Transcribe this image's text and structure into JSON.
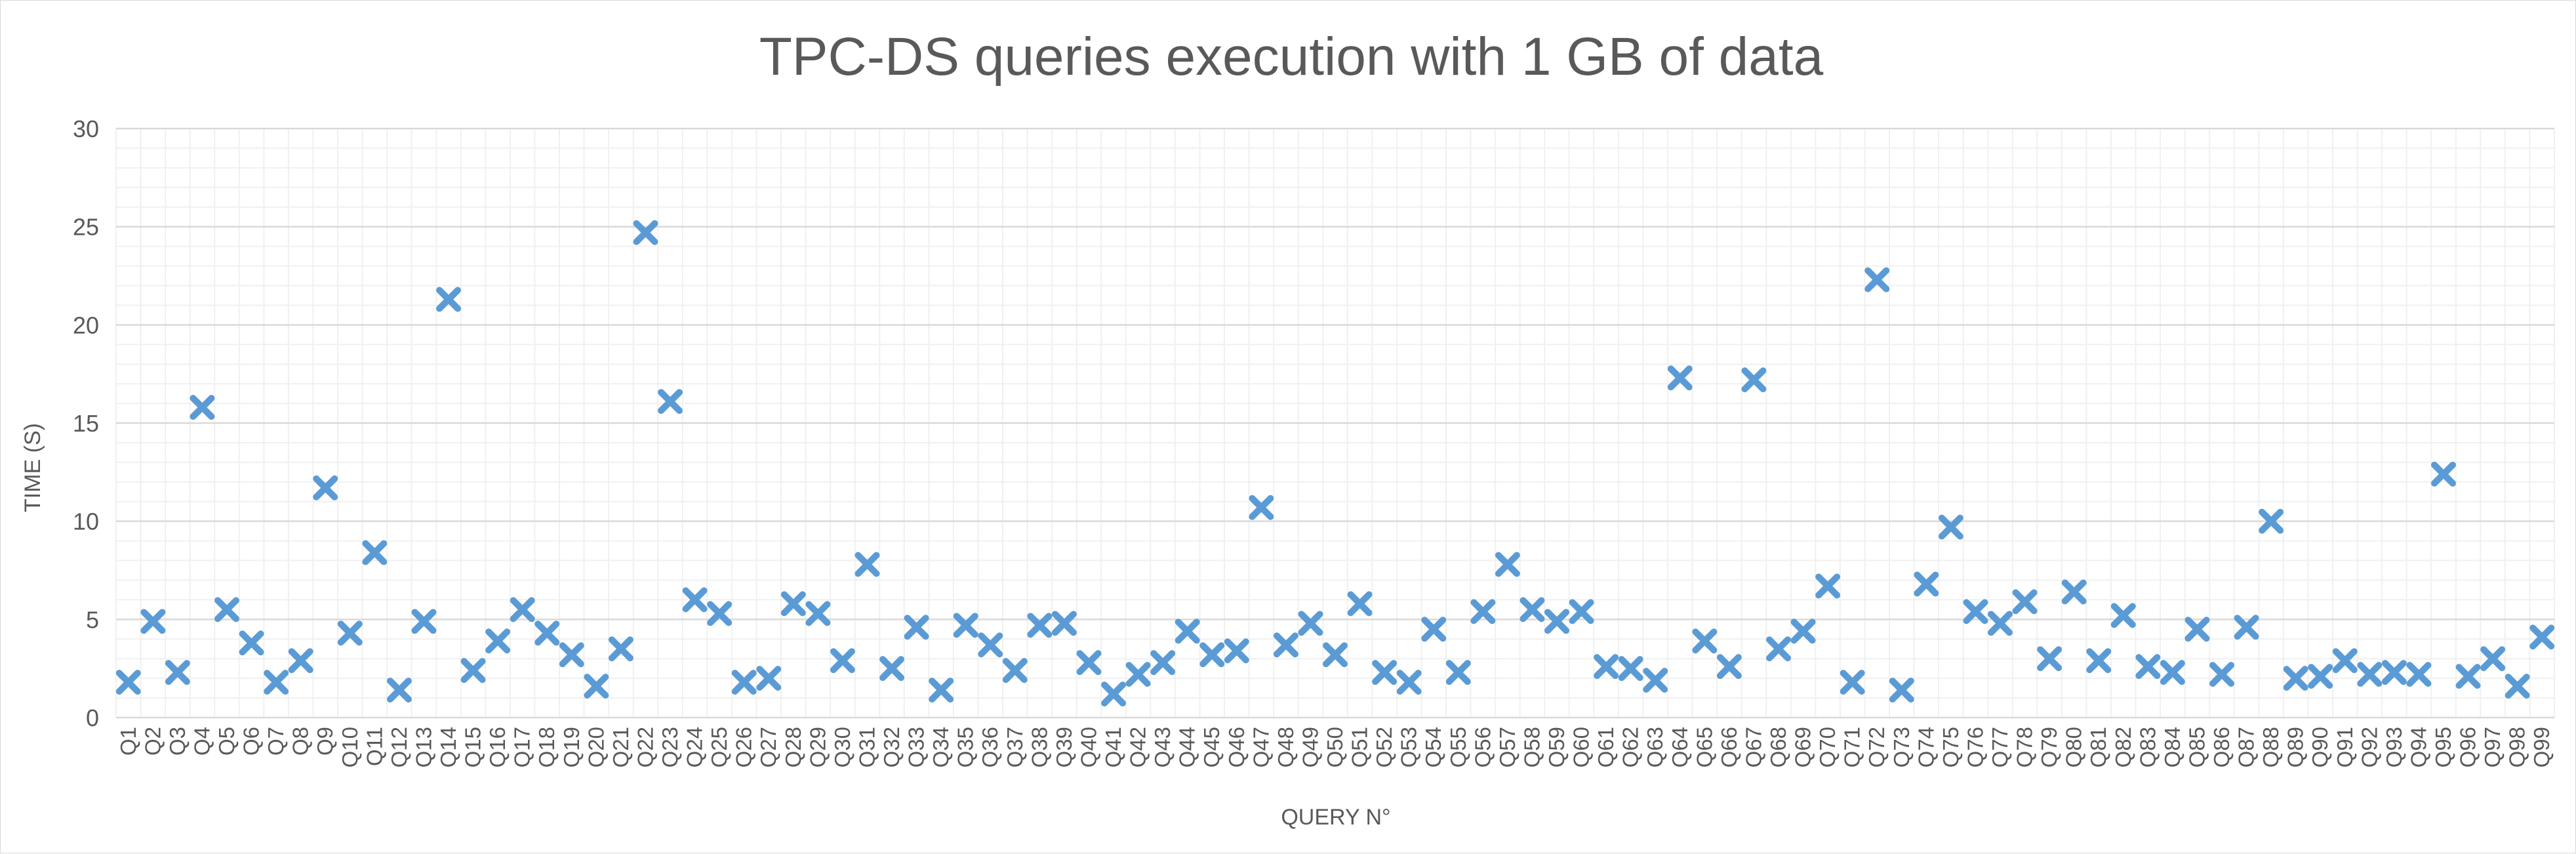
{
  "chart_data": {
    "type": "scatter",
    "title": "TPC-DS queries execution with 1 GB of data",
    "xlabel": "QUERY N°",
    "ylabel": "TIME (S)",
    "ylim": [
      0,
      30
    ],
    "y_ticks": [
      0,
      5,
      10,
      15,
      20,
      25,
      30
    ],
    "y_minor_step": 1,
    "grid": true,
    "marker": "x",
    "colors": {
      "marker": "#5b9bd5",
      "major_grid": "#d9d9d9",
      "minor_grid": "#f0f0f0",
      "text": "#595959"
    },
    "categories": [
      "Q1",
      "Q2",
      "Q3",
      "Q4",
      "Q5",
      "Q6",
      "Q7",
      "Q8",
      "Q9",
      "Q10",
      "Q11",
      "Q12",
      "Q13",
      "Q14",
      "Q15",
      "Q16",
      "Q17",
      "Q18",
      "Q19",
      "Q20",
      "Q21",
      "Q22",
      "Q23",
      "Q24",
      "Q25",
      "Q26",
      "Q27",
      "Q28",
      "Q29",
      "Q30",
      "Q31",
      "Q32",
      "Q33",
      "Q34",
      "Q35",
      "Q36",
      "Q37",
      "Q38",
      "Q39",
      "Q40",
      "Q41",
      "Q42",
      "Q43",
      "Q44",
      "Q45",
      "Q46",
      "Q47",
      "Q48",
      "Q49",
      "Q50",
      "Q51",
      "Q52",
      "Q53",
      "Q54",
      "Q55",
      "Q56",
      "Q57",
      "Q58",
      "Q59",
      "Q60",
      "Q61",
      "Q62",
      "Q63",
      "Q64",
      "Q65",
      "Q66",
      "Q67",
      "Q68",
      "Q69",
      "Q70",
      "Q71",
      "Q72",
      "Q73",
      "Q74",
      "Q75",
      "Q76",
      "Q77",
      "Q78",
      "Q79",
      "Q80",
      "Q81",
      "Q82",
      "Q83",
      "Q84",
      "Q85",
      "Q86",
      "Q87",
      "Q88",
      "Q89",
      "Q90",
      "Q91",
      "Q92",
      "Q93",
      "Q94",
      "Q95",
      "Q96",
      "Q97",
      "Q98",
      "Q99"
    ],
    "values": [
      1.8,
      4.9,
      2.3,
      15.8,
      5.5,
      3.8,
      1.8,
      2.9,
      11.7,
      4.3,
      8.4,
      1.4,
      4.9,
      21.3,
      2.4,
      3.9,
      5.5,
      4.3,
      3.2,
      1.6,
      3.5,
      24.7,
      16.1,
      6.0,
      5.3,
      1.8,
      2.0,
      5.8,
      5.3,
      2.9,
      7.8,
      2.5,
      4.6,
      1.4,
      4.7,
      3.7,
      2.4,
      4.7,
      4.8,
      2.8,
      1.2,
      2.2,
      2.8,
      4.4,
      3.2,
      3.4,
      10.7,
      3.7,
      4.8,
      3.2,
      5.8,
      2.3,
      1.8,
      4.5,
      2.3,
      5.4,
      7.8,
      5.5,
      4.9,
      5.4,
      2.6,
      2.5,
      1.9,
      17.3,
      3.9,
      2.6,
      17.2,
      3.5,
      4.4,
      6.7,
      1.8,
      22.3,
      1.4,
      6.8,
      9.7,
      5.4,
      4.8,
      5.9,
      3.0,
      6.4,
      2.9,
      5.2,
      2.6,
      2.3,
      4.5,
      2.2,
      4.6,
      10.0,
      2.0,
      2.1,
      2.9,
      2.2,
      2.3,
      2.2,
      12.4,
      2.1,
      3.0,
      1.6,
      4.1
    ]
  }
}
